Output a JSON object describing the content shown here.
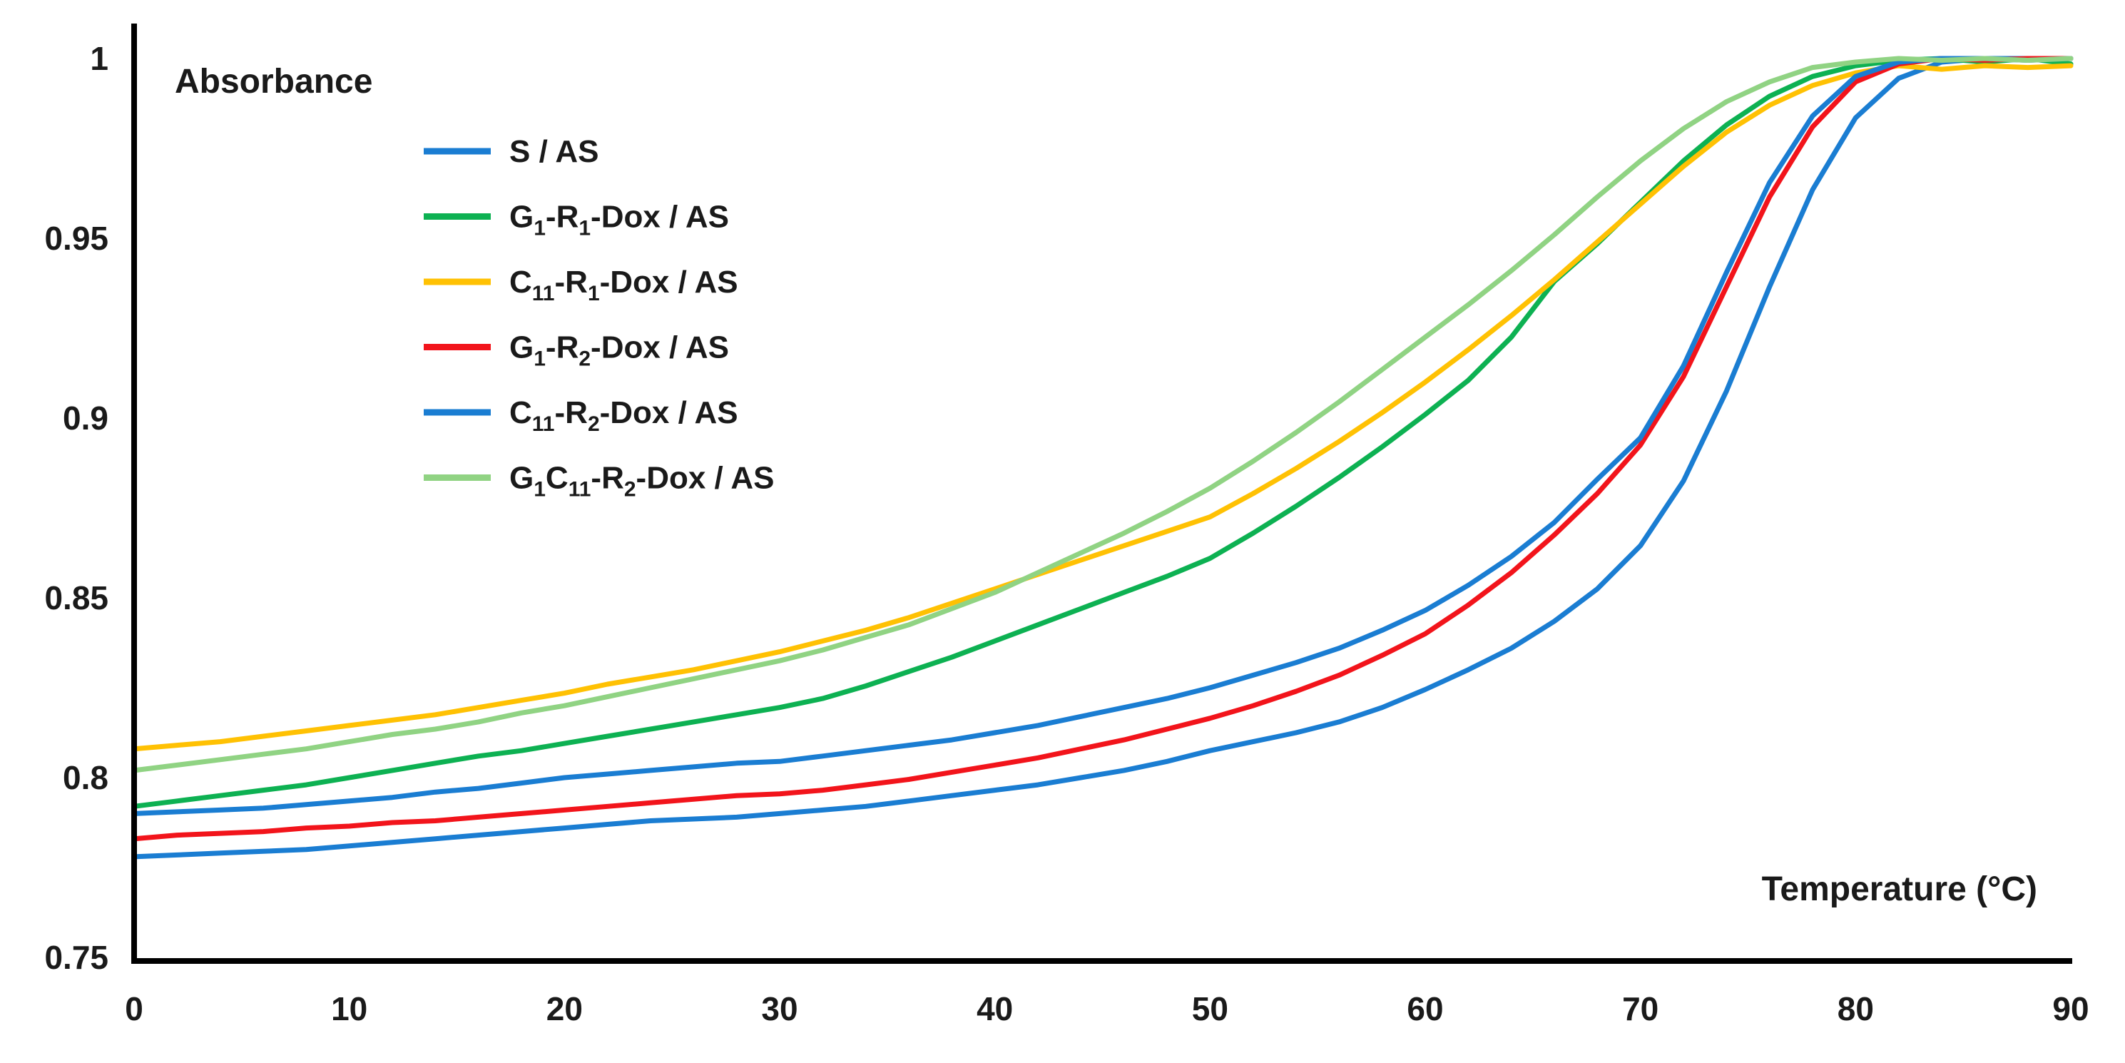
{
  "chart_data": {
    "type": "line",
    "title": "",
    "ylabel": "Absorbance",
    "xlabel": "Temperature (°C)",
    "xlim": [
      0,
      90
    ],
    "ylim": [
      0.75,
      1.0
    ],
    "x_tick_labels": [
      "0",
      "10",
      "20",
      "30",
      "40",
      "50",
      "60",
      "70",
      "80",
      "90"
    ],
    "x_tick_values": [
      0,
      10,
      20,
      30,
      40,
      50,
      60,
      70,
      80,
      90
    ],
    "y_tick_labels": [
      "1",
      "0.95",
      "0.9",
      "0.85",
      "0.8",
      "0.75"
    ],
    "y_tick_values": [
      1.0,
      0.95,
      0.9,
      0.85,
      0.8,
      0.75
    ],
    "grid": false,
    "legend_position": "upper-left-inside",
    "x": [
      0,
      2,
      4,
      6,
      8,
      10,
      12,
      14,
      16,
      18,
      20,
      22,
      24,
      26,
      28,
      30,
      32,
      34,
      36,
      38,
      40,
      42,
      44,
      46,
      48,
      50,
      52,
      54,
      56,
      58,
      60,
      62,
      64,
      66,
      68,
      70,
      72,
      74,
      76,
      78,
      80,
      82,
      84,
      86,
      88,
      90
    ],
    "series": [
      {
        "id": "s-as",
        "name": "S / AS",
        "label": "S / AS",
        "color": "#1a7dd2",
        "values": [
          0.778,
          0.7785,
          0.779,
          0.7795,
          0.78,
          0.781,
          0.782,
          0.783,
          0.784,
          0.785,
          0.786,
          0.787,
          0.788,
          0.7885,
          0.789,
          0.79,
          0.791,
          0.792,
          0.7935,
          0.795,
          0.7965,
          0.798,
          0.8,
          0.802,
          0.8045,
          0.8075,
          0.81,
          0.8125,
          0.8155,
          0.8195,
          0.8245,
          0.83,
          0.836,
          0.8435,
          0.8525,
          0.8645,
          0.8825,
          0.9075,
          0.9365,
          0.9635,
          0.9835,
          0.9945,
          0.999,
          1.0,
          1.0,
          1.0
        ]
      },
      {
        "id": "g1-r1-dox-as",
        "name": "G1-R1-Dox / AS",
        "label": "G_{1}-R_{1}-Dox / AS",
        "color": "#0db152",
        "values": [
          0.792,
          0.7935,
          0.795,
          0.7965,
          0.798,
          0.8,
          0.802,
          0.804,
          0.806,
          0.8075,
          0.8095,
          0.8115,
          0.8135,
          0.8155,
          0.8175,
          0.8195,
          0.822,
          0.8255,
          0.8295,
          0.8335,
          0.838,
          0.8425,
          0.847,
          0.8515,
          0.856,
          0.861,
          0.868,
          0.8755,
          0.8835,
          0.892,
          0.901,
          0.9105,
          0.9225,
          0.938,
          0.9485,
          0.96,
          0.9715,
          0.9815,
          0.9895,
          0.995,
          0.998,
          0.9995,
          1.0,
          0.999,
          1.0,
          0.9985
        ]
      },
      {
        "id": "c11-r1-dox-as",
        "name": "C11-R1-Dox / AS",
        "label": "C_{11}-R_{1}-Dox / AS",
        "color": "#ffc103",
        "values": [
          0.808,
          0.809,
          0.81,
          0.8115,
          0.813,
          0.8145,
          0.816,
          0.8175,
          0.8195,
          0.8215,
          0.8235,
          0.826,
          0.828,
          0.83,
          0.8325,
          0.835,
          0.838,
          0.841,
          0.8445,
          0.8485,
          0.8525,
          0.8565,
          0.8605,
          0.8645,
          0.8685,
          0.8725,
          0.879,
          0.886,
          0.8935,
          0.9015,
          0.91,
          0.919,
          0.9285,
          0.9385,
          0.949,
          0.9595,
          0.97,
          0.9795,
          0.987,
          0.9925,
          0.996,
          0.998,
          0.997,
          0.998,
          0.9975,
          0.998
        ]
      },
      {
        "id": "g1-r2-dox-as",
        "name": "G1-R2-Dox / AS",
        "label": "G_{1}-R_{2}-Dox / AS",
        "color": "#f2141b",
        "values": [
          0.783,
          0.784,
          0.7845,
          0.785,
          0.786,
          0.7865,
          0.7875,
          0.788,
          0.789,
          0.79,
          0.791,
          0.792,
          0.793,
          0.794,
          0.795,
          0.7955,
          0.7965,
          0.798,
          0.7995,
          0.8015,
          0.8035,
          0.8055,
          0.808,
          0.8105,
          0.8135,
          0.8165,
          0.82,
          0.824,
          0.8285,
          0.834,
          0.84,
          0.848,
          0.857,
          0.8675,
          0.879,
          0.8925,
          0.9115,
          0.9365,
          0.9615,
          0.981,
          0.9935,
          0.9985,
          1.0,
          0.9995,
          1.0,
          1.0
        ]
      },
      {
        "id": "c11-r2-dox-as",
        "name": "C11-R2-Dox / AS",
        "label": "C_{11}-R_{2}-Dox / AS",
        "color": "#1a7dd2",
        "values": [
          0.79,
          0.7905,
          0.791,
          0.7915,
          0.7925,
          0.7935,
          0.7945,
          0.796,
          0.797,
          0.7985,
          0.8,
          0.801,
          0.802,
          0.803,
          0.804,
          0.8045,
          0.806,
          0.8075,
          0.809,
          0.8105,
          0.8125,
          0.8145,
          0.817,
          0.8195,
          0.822,
          0.825,
          0.8285,
          0.832,
          0.836,
          0.841,
          0.8465,
          0.8535,
          0.8615,
          0.871,
          0.883,
          0.8945,
          0.9145,
          0.9405,
          0.9655,
          0.984,
          0.995,
          0.999,
          1.0,
          1.0,
          0.9995,
          1.0
        ]
      },
      {
        "id": "g1c11-r2-dox-as",
        "name": "G1C11-R2-Dox / AS",
        "label": "G_{1}C_{11}-R_{2}-Dox / AS",
        "color": "#90d383",
        "values": [
          0.802,
          0.8035,
          0.805,
          0.8065,
          0.808,
          0.81,
          0.812,
          0.8135,
          0.8155,
          0.818,
          0.82,
          0.8225,
          0.825,
          0.8275,
          0.83,
          0.8325,
          0.8355,
          0.839,
          0.8425,
          0.847,
          0.8515,
          0.857,
          0.8625,
          0.868,
          0.874,
          0.8805,
          0.888,
          0.896,
          0.9045,
          0.9135,
          0.9225,
          0.9315,
          0.941,
          0.951,
          0.9615,
          0.9715,
          0.9805,
          0.988,
          0.9935,
          0.9975,
          0.999,
          1.0,
          0.9995,
          1.0,
          0.9995,
          1.0
        ]
      }
    ]
  },
  "style": {
    "background_color": "#ffffff",
    "axis_color": "#000000",
    "text_color": "#1a1a1a"
  }
}
